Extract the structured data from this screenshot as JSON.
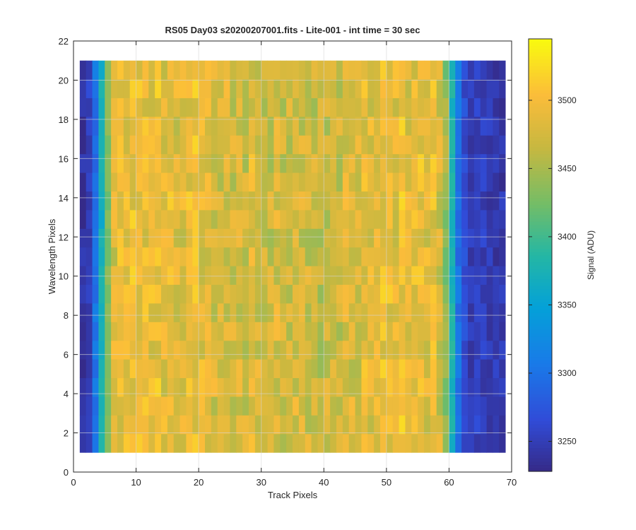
{
  "chart_data": {
    "type": "heatmap",
    "title": "RS05 Day03  s20200207001.fits - Lite-001 - int time = 30 sec",
    "xlabel": "Track Pixels",
    "ylabel": "Wavelength Pixels",
    "colorbar_label": "Signal (ADU)",
    "xlim": [
      0,
      70
    ],
    "ylim": [
      0,
      22
    ],
    "x_ticks": [
      0,
      10,
      20,
      30,
      40,
      50,
      60,
      70
    ],
    "y_ticks": [
      0,
      2,
      4,
      6,
      8,
      10,
      12,
      14,
      16,
      18,
      20,
      22
    ],
    "x_range": [
      1,
      69
    ],
    "y_range": [
      1,
      21
    ],
    "n_cols": 68,
    "n_rows": 21,
    "color_limits": [
      3228,
      3545
    ],
    "colorbar_ticks": [
      3250,
      3300,
      3350,
      3400,
      3450,
      3500
    ],
    "colormap": "parula",
    "grid": true,
    "track_profile": [
      3238,
      3255,
      3300,
      3370,
      3430,
      3480,
      3490,
      3492,
      3495,
      3498,
      3490,
      3488,
      3495,
      3485,
      3490,
      3480,
      3482,
      3492,
      3496,
      3485,
      3488,
      3478,
      3475,
      3480,
      3473,
      3478,
      3470,
      3488,
      3476,
      3472,
      3470,
      3478,
      3468,
      3470,
      3480,
      3475,
      3472,
      3468,
      3465,
      3470,
      3473,
      3468,
      3480,
      3478,
      3475,
      3488,
      3485,
      3490,
      3495,
      3492,
      3482,
      3498,
      3480,
      3490,
      3495,
      3485,
      3492,
      3475,
      3440,
      3378,
      3300,
      3265,
      3250,
      3256,
      3252,
      3248,
      3246,
      3244
    ]
  }
}
